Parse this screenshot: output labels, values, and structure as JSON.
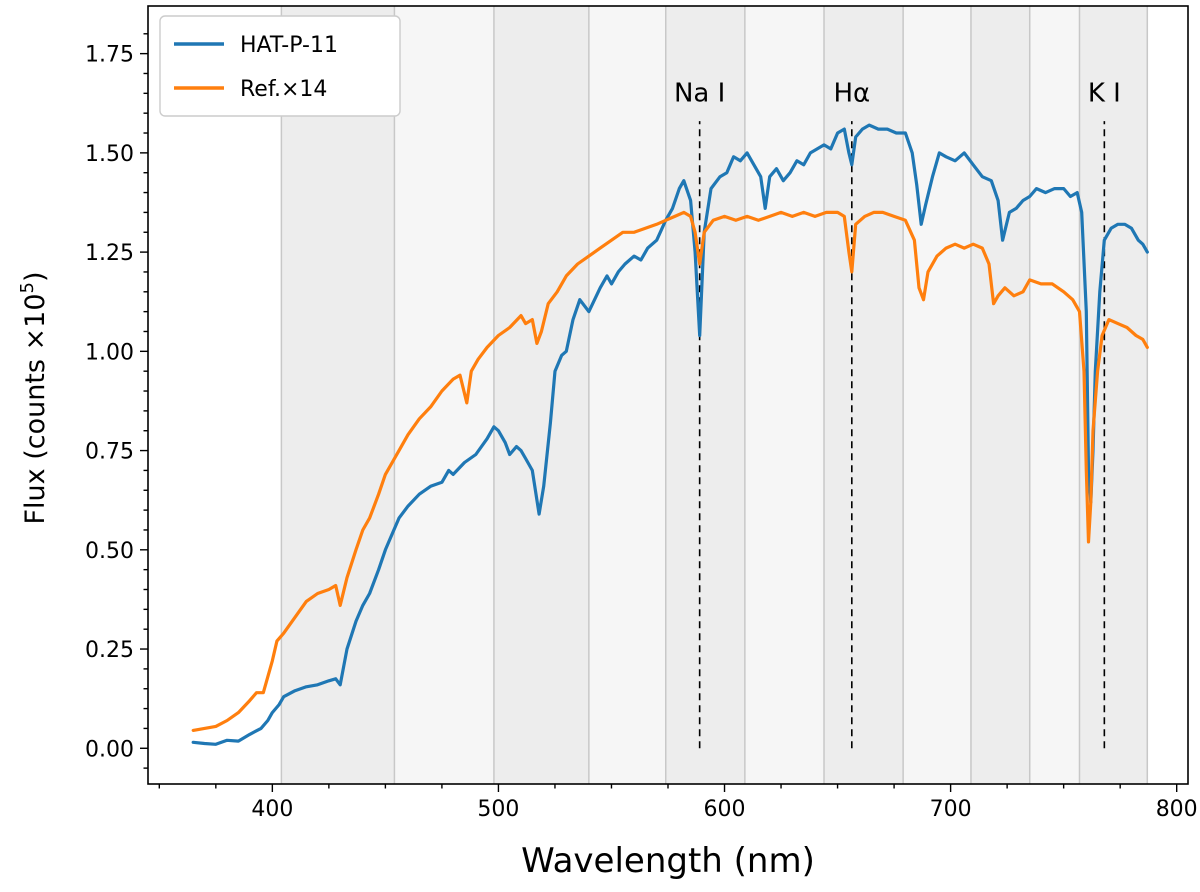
{
  "chart_data": {
    "type": "line",
    "xlabel": "Wavelength (nm)",
    "ylabel_main": "Flux (counts ×10",
    "ylabel_sup": "5",
    "ylabel_end": ")",
    "xlim": [
      345,
      805
    ],
    "ylim": [
      -0.09,
      1.87
    ],
    "x_ticks": [
      400,
      500,
      600,
      700,
      800
    ],
    "x_tick_labels": [
      "400",
      "500",
      "600",
      "700",
      "800"
    ],
    "y_ticks": [
      0.0,
      0.25,
      0.5,
      0.75,
      1.0,
      1.25,
      1.5,
      1.75
    ],
    "y_tick_labels": [
      "0.00",
      "0.25",
      "0.50",
      "0.75",
      "1.00",
      "1.25",
      "1.50",
      "1.75"
    ],
    "grid": false,
    "legend_position": "top-left",
    "bands": [
      {
        "x0": 404,
        "x1": 454,
        "shade": "light"
      },
      {
        "x0": 454,
        "x1": 498,
        "shade": "lighter"
      },
      {
        "x0": 498,
        "x1": 540,
        "shade": "light"
      },
      {
        "x0": 540,
        "x1": 574,
        "shade": "lighter"
      },
      {
        "x0": 574,
        "x1": 609,
        "shade": "light"
      },
      {
        "x0": 609,
        "x1": 644,
        "shade": "lighter"
      },
      {
        "x0": 644,
        "x1": 679,
        "shade": "light"
      },
      {
        "x0": 679,
        "x1": 709,
        "shade": "lighter"
      },
      {
        "x0": 709,
        "x1": 735,
        "shade": "light"
      },
      {
        "x0": 735,
        "x1": 757,
        "shade": "lighter"
      },
      {
        "x0": 757,
        "x1": 787,
        "shade": "light"
      }
    ],
    "band_color_light": "#ededed",
    "band_color_lighter": "#f6f6f6",
    "band_edge_color": "#c8c8c8",
    "lines": [
      {
        "x": 589,
        "label": "Na I",
        "ymin": 0.0,
        "ymax": 1.58
      },
      {
        "x": 656.3,
        "label": "Hα",
        "ymin": 0.0,
        "ymax": 1.58
      },
      {
        "x": 768,
        "label": "K I",
        "ymin": 0.0,
        "ymax": 1.58
      }
    ],
    "series": [
      {
        "name": "HAT-P-11",
        "color": "#1f77b4",
        "points": [
          [
            365,
            0.015
          ],
          [
            370,
            0.012
          ],
          [
            375,
            0.01
          ],
          [
            380,
            0.02
          ],
          [
            385,
            0.018
          ],
          [
            390,
            0.035
          ],
          [
            395,
            0.05
          ],
          [
            398,
            0.07
          ],
          [
            400,
            0.09
          ],
          [
            403,
            0.11
          ],
          [
            405,
            0.13
          ],
          [
            410,
            0.145
          ],
          [
            415,
            0.155
          ],
          [
            420,
            0.16
          ],
          [
            425,
            0.17
          ],
          [
            428,
            0.175
          ],
          [
            430,
            0.16
          ],
          [
            433,
            0.25
          ],
          [
            437,
            0.32
          ],
          [
            440,
            0.36
          ],
          [
            443,
            0.39
          ],
          [
            447,
            0.45
          ],
          [
            450,
            0.5
          ],
          [
            453,
            0.54
          ],
          [
            456,
            0.58
          ],
          [
            460,
            0.61
          ],
          [
            465,
            0.64
          ],
          [
            470,
            0.66
          ],
          [
            475,
            0.67
          ],
          [
            478,
            0.7
          ],
          [
            480,
            0.69
          ],
          [
            485,
            0.72
          ],
          [
            490,
            0.74
          ],
          [
            495,
            0.78
          ],
          [
            498,
            0.81
          ],
          [
            500,
            0.8
          ],
          [
            503,
            0.77
          ],
          [
            505,
            0.74
          ],
          [
            508,
            0.76
          ],
          [
            510,
            0.75
          ],
          [
            512,
            0.73
          ],
          [
            515,
            0.7
          ],
          [
            518,
            0.59
          ],
          [
            520,
            0.66
          ],
          [
            523,
            0.82
          ],
          [
            525,
            0.95
          ],
          [
            528,
            0.99
          ],
          [
            530,
            1.0
          ],
          [
            533,
            1.08
          ],
          [
            536,
            1.13
          ],
          [
            540,
            1.1
          ],
          [
            545,
            1.16
          ],
          [
            548,
            1.19
          ],
          [
            550,
            1.17
          ],
          [
            553,
            1.2
          ],
          [
            556,
            1.22
          ],
          [
            560,
            1.24
          ],
          [
            563,
            1.23
          ],
          [
            566,
            1.26
          ],
          [
            570,
            1.28
          ],
          [
            574,
            1.33
          ],
          [
            577,
            1.36
          ],
          [
            580,
            1.41
          ],
          [
            582,
            1.43
          ],
          [
            585,
            1.38
          ],
          [
            587,
            1.25
          ],
          [
            589,
            1.04
          ],
          [
            591,
            1.3
          ],
          [
            594,
            1.41
          ],
          [
            598,
            1.44
          ],
          [
            601,
            1.45
          ],
          [
            604,
            1.49
          ],
          [
            607,
            1.48
          ],
          [
            610,
            1.5
          ],
          [
            613,
            1.47
          ],
          [
            616,
            1.44
          ],
          [
            618,
            1.36
          ],
          [
            620,
            1.44
          ],
          [
            623,
            1.46
          ],
          [
            626,
            1.43
          ],
          [
            629,
            1.45
          ],
          [
            632,
            1.48
          ],
          [
            635,
            1.47
          ],
          [
            638,
            1.5
          ],
          [
            641,
            1.51
          ],
          [
            644,
            1.52
          ],
          [
            647,
            1.51
          ],
          [
            650,
            1.55
          ],
          [
            653,
            1.56
          ],
          [
            655,
            1.5
          ],
          [
            656.3,
            1.47
          ],
          [
            658,
            1.54
          ],
          [
            661,
            1.56
          ],
          [
            664,
            1.57
          ],
          [
            668,
            1.56
          ],
          [
            672,
            1.56
          ],
          [
            676,
            1.55
          ],
          [
            680,
            1.55
          ],
          [
            683,
            1.5
          ],
          [
            685,
            1.42
          ],
          [
            687,
            1.32
          ],
          [
            689,
            1.37
          ],
          [
            692,
            1.44
          ],
          [
            695,
            1.5
          ],
          [
            698,
            1.49
          ],
          [
            702,
            1.48
          ],
          [
            706,
            1.5
          ],
          [
            710,
            1.47
          ],
          [
            714,
            1.44
          ],
          [
            718,
            1.43
          ],
          [
            721,
            1.38
          ],
          [
            723,
            1.28
          ],
          [
            726,
            1.35
          ],
          [
            729,
            1.36
          ],
          [
            732,
            1.38
          ],
          [
            735,
            1.39
          ],
          [
            738,
            1.41
          ],
          [
            742,
            1.4
          ],
          [
            746,
            1.41
          ],
          [
            750,
            1.41
          ],
          [
            753,
            1.39
          ],
          [
            756,
            1.4
          ],
          [
            758,
            1.35
          ],
          [
            760,
            1.1
          ],
          [
            761,
            0.7
          ],
          [
            762,
            0.62
          ],
          [
            763,
            0.75
          ],
          [
            764,
            0.95
          ],
          [
            766,
            1.15
          ],
          [
            768,
            1.28
          ],
          [
            771,
            1.31
          ],
          [
            774,
            1.32
          ],
          [
            777,
            1.32
          ],
          [
            780,
            1.31
          ],
          [
            783,
            1.28
          ],
          [
            785,
            1.27
          ],
          [
            787,
            1.25
          ]
        ]
      },
      {
        "name": "Ref.×14",
        "color": "#ff7f0e",
        "points": [
          [
            365,
            0.045
          ],
          [
            370,
            0.05
          ],
          [
            375,
            0.055
          ],
          [
            380,
            0.07
          ],
          [
            385,
            0.09
          ],
          [
            390,
            0.12
          ],
          [
            393,
            0.14
          ],
          [
            396,
            0.14
          ],
          [
            398,
            0.18
          ],
          [
            400,
            0.22
          ],
          [
            402,
            0.27
          ],
          [
            405,
            0.29
          ],
          [
            410,
            0.33
          ],
          [
            415,
            0.37
          ],
          [
            420,
            0.39
          ],
          [
            425,
            0.4
          ],
          [
            428,
            0.41
          ],
          [
            430,
            0.36
          ],
          [
            433,
            0.43
          ],
          [
            437,
            0.5
          ],
          [
            440,
            0.55
          ],
          [
            443,
            0.58
          ],
          [
            447,
            0.64
          ],
          [
            450,
            0.69
          ],
          [
            453,
            0.72
          ],
          [
            456,
            0.75
          ],
          [
            460,
            0.79
          ],
          [
            465,
            0.83
          ],
          [
            470,
            0.86
          ],
          [
            475,
            0.9
          ],
          [
            480,
            0.93
          ],
          [
            483,
            0.94
          ],
          [
            486,
            0.87
          ],
          [
            488,
            0.95
          ],
          [
            491,
            0.98
          ],
          [
            495,
            1.01
          ],
          [
            500,
            1.04
          ],
          [
            505,
            1.06
          ],
          [
            510,
            1.09
          ],
          [
            512,
            1.07
          ],
          [
            515,
            1.08
          ],
          [
            517,
            1.02
          ],
          [
            519,
            1.05
          ],
          [
            522,
            1.12
          ],
          [
            526,
            1.15
          ],
          [
            530,
            1.19
          ],
          [
            535,
            1.22
          ],
          [
            540,
            1.24
          ],
          [
            545,
            1.26
          ],
          [
            550,
            1.28
          ],
          [
            555,
            1.3
          ],
          [
            560,
            1.3
          ],
          [
            565,
            1.31
          ],
          [
            570,
            1.32
          ],
          [
            574,
            1.33
          ],
          [
            578,
            1.34
          ],
          [
            582,
            1.35
          ],
          [
            585,
            1.34
          ],
          [
            587,
            1.3
          ],
          [
            589,
            1.22
          ],
          [
            591,
            1.3
          ],
          [
            595,
            1.33
          ],
          [
            600,
            1.34
          ],
          [
            605,
            1.33
          ],
          [
            610,
            1.34
          ],
          [
            615,
            1.33
          ],
          [
            620,
            1.34
          ],
          [
            625,
            1.35
          ],
          [
            630,
            1.34
          ],
          [
            635,
            1.35
          ],
          [
            640,
            1.34
          ],
          [
            645,
            1.35
          ],
          [
            650,
            1.35
          ],
          [
            653,
            1.34
          ],
          [
            655,
            1.25
          ],
          [
            656.3,
            1.2
          ],
          [
            658,
            1.32
          ],
          [
            662,
            1.34
          ],
          [
            666,
            1.35
          ],
          [
            670,
            1.35
          ],
          [
            675,
            1.34
          ],
          [
            680,
            1.33
          ],
          [
            684,
            1.28
          ],
          [
            686,
            1.16
          ],
          [
            688,
            1.13
          ],
          [
            690,
            1.2
          ],
          [
            694,
            1.24
          ],
          [
            698,
            1.26
          ],
          [
            702,
            1.27
          ],
          [
            706,
            1.26
          ],
          [
            710,
            1.27
          ],
          [
            714,
            1.26
          ],
          [
            717,
            1.22
          ],
          [
            719,
            1.12
          ],
          [
            721,
            1.14
          ],
          [
            724,
            1.16
          ],
          [
            728,
            1.14
          ],
          [
            732,
            1.15
          ],
          [
            735,
            1.18
          ],
          [
            740,
            1.17
          ],
          [
            745,
            1.17
          ],
          [
            750,
            1.15
          ],
          [
            754,
            1.13
          ],
          [
            757,
            1.1
          ],
          [
            759,
            0.95
          ],
          [
            760,
            0.7
          ],
          [
            761,
            0.52
          ],
          [
            762,
            0.62
          ],
          [
            763,
            0.8
          ],
          [
            765,
            0.95
          ],
          [
            767,
            1.04
          ],
          [
            770,
            1.08
          ],
          [
            774,
            1.07
          ],
          [
            778,
            1.06
          ],
          [
            782,
            1.04
          ],
          [
            785,
            1.03
          ],
          [
            787,
            1.01
          ]
        ]
      }
    ]
  }
}
